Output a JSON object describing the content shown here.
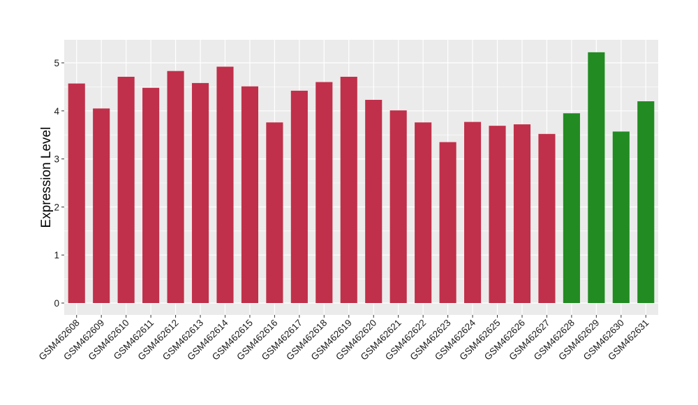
{
  "chart_data": {
    "type": "bar",
    "title": "",
    "xlabel": "",
    "ylabel": "Expression Level",
    "ylim": [
      0,
      5.5
    ],
    "yticks": [
      0,
      1,
      2,
      3,
      4,
      5
    ],
    "grid": true,
    "legend": "none",
    "categories": [
      "GSM462608",
      "GSM462609",
      "GSM462610",
      "GSM462611",
      "GSM462612",
      "GSM462613",
      "GSM462614",
      "GSM462615",
      "GSM462616",
      "GSM462617",
      "GSM462618",
      "GSM462619",
      "GSM462620",
      "GSM462621",
      "GSM462622",
      "GSM462623",
      "GSM462624",
      "GSM462625",
      "GSM462626",
      "GSM462627",
      "GSM462628",
      "GSM462629",
      "GSM462630",
      "GSM462631"
    ],
    "values": [
      4.57,
      4.05,
      4.71,
      4.48,
      4.83,
      4.58,
      4.92,
      4.51,
      3.76,
      4.42,
      4.6,
      4.71,
      4.23,
      4.01,
      3.76,
      3.35,
      3.77,
      3.69,
      3.72,
      3.52,
      3.95,
      5.22,
      3.57,
      4.2
    ],
    "bar_colors": [
      "#C0304A",
      "#C0304A",
      "#C0304A",
      "#C0304A",
      "#C0304A",
      "#C0304A",
      "#C0304A",
      "#C0304A",
      "#C0304A",
      "#C0304A",
      "#C0304A",
      "#C0304A",
      "#C0304A",
      "#C0304A",
      "#C0304A",
      "#C0304A",
      "#C0304A",
      "#C0304A",
      "#C0304A",
      "#C0304A",
      "#228B22",
      "#228B22",
      "#228B22",
      "#228B22"
    ],
    "panel_color": "#EBEBEB",
    "grid_color": "#FFFFFF"
  }
}
